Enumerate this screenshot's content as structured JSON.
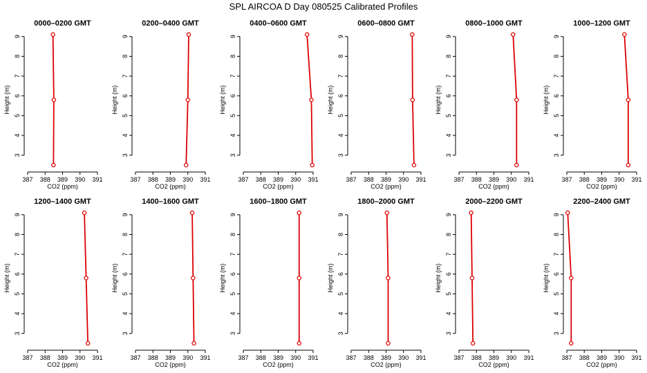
{
  "title": "SPL AIRCOA D  Day 080525  Calibrated Profiles",
  "colors": {
    "profile": "#dd0000",
    "axis": "#000000"
  },
  "chart_data": [
    {
      "type": "line",
      "title": "0000–0200 GMT",
      "xlabel": "CO2 (ppm)",
      "ylabel": "Height (m)",
      "xlim": [
        387,
        391
      ],
      "ylim": [
        2.5,
        9.1
      ],
      "x_ticks": [
        "387",
        "388",
        "389",
        "390",
        "391"
      ],
      "y_ticks": [
        "3",
        "4",
        "5",
        "6",
        "7",
        "8",
        "9"
      ],
      "series": [
        {
          "x": [
            388.45,
            388.5,
            388.48
          ],
          "y": [
            9.1,
            5.8,
            2.5
          ]
        }
      ]
    },
    {
      "type": "line",
      "title": "0200–0400 GMT",
      "xlabel": "CO2 (ppm)",
      "ylabel": "Height (m)",
      "xlim": [
        387,
        391
      ],
      "ylim": [
        2.5,
        9.1
      ],
      "x_ticks": [
        "387",
        "388",
        "389",
        "390",
        "391"
      ],
      "y_ticks": [
        "3",
        "4",
        "5",
        "6",
        "7",
        "8",
        "9"
      ],
      "series": [
        {
          "x": [
            390.05,
            390.0,
            389.9
          ],
          "y": [
            9.1,
            5.8,
            2.5
          ]
        }
      ]
    },
    {
      "type": "line",
      "title": "0400–0600 GMT",
      "xlabel": "CO2 (ppm)",
      "ylabel": "Height (m)",
      "xlim": [
        387,
        391
      ],
      "ylim": [
        2.5,
        9.1
      ],
      "x_ticks": [
        "387",
        "388",
        "389",
        "390",
        "391"
      ],
      "y_ticks": [
        "3",
        "4",
        "5",
        "6",
        "7",
        "8",
        "9"
      ],
      "series": [
        {
          "x": [
            390.65,
            390.9,
            390.95
          ],
          "y": [
            9.1,
            5.8,
            2.5
          ]
        }
      ]
    },
    {
      "type": "line",
      "title": "0600–0800 GMT",
      "xlabel": "CO2 (ppm)",
      "ylabel": "Height (m)",
      "xlim": [
        387,
        391
      ],
      "ylim": [
        2.5,
        9.1
      ],
      "x_ticks": [
        "387",
        "388",
        "389",
        "390",
        "391"
      ],
      "y_ticks": [
        "3",
        "4",
        "5",
        "6",
        "7",
        "8",
        "9"
      ],
      "series": [
        {
          "x": [
            390.5,
            390.52,
            390.6
          ],
          "y": [
            9.1,
            5.8,
            2.5
          ]
        }
      ]
    },
    {
      "type": "line",
      "title": "0800–1000 GMT",
      "xlabel": "CO2 (ppm)",
      "ylabel": "Height (m)",
      "xlim": [
        387,
        391
      ],
      "ylim": [
        2.5,
        9.1
      ],
      "x_ticks": [
        "387",
        "388",
        "389",
        "390",
        "391"
      ],
      "y_ticks": [
        "3",
        "4",
        "5",
        "6",
        "7",
        "8",
        "9"
      ],
      "series": [
        {
          "x": [
            390.1,
            390.3,
            390.3
          ],
          "y": [
            9.1,
            5.8,
            2.5
          ]
        }
      ]
    },
    {
      "type": "line",
      "title": "1000–1200 GMT",
      "xlabel": "CO2 (ppm)",
      "ylabel": "Height (m)",
      "xlim": [
        387,
        391
      ],
      "ylim": [
        2.5,
        9.1
      ],
      "x_ticks": [
        "387",
        "388",
        "389",
        "390",
        "391"
      ],
      "y_ticks": [
        "3",
        "4",
        "5",
        "6",
        "7",
        "8",
        "9"
      ],
      "series": [
        {
          "x": [
            390.3,
            390.52,
            390.52
          ],
          "y": [
            9.1,
            5.8,
            2.5
          ]
        }
      ]
    },
    {
      "type": "line",
      "title": "1200–1400 GMT",
      "xlabel": "CO2 (ppm)",
      "ylabel": "Height (m)",
      "xlim": [
        387,
        391
      ],
      "ylim": [
        2.5,
        9.1
      ],
      "x_ticks": [
        "387",
        "388",
        "389",
        "390",
        "391"
      ],
      "y_ticks": [
        "3",
        "4",
        "5",
        "6",
        "7",
        "8",
        "9"
      ],
      "series": [
        {
          "x": [
            390.25,
            390.35,
            390.45
          ],
          "y": [
            9.1,
            5.8,
            2.5
          ]
        }
      ]
    },
    {
      "type": "line",
      "title": "1400–1600 GMT",
      "xlabel": "CO2 (ppm)",
      "ylabel": "Height (m)",
      "xlim": [
        387,
        391
      ],
      "ylim": [
        2.5,
        9.1
      ],
      "x_ticks": [
        "387",
        "388",
        "389",
        "390",
        "391"
      ],
      "y_ticks": [
        "3",
        "4",
        "5",
        "6",
        "7",
        "8",
        "9"
      ],
      "series": [
        {
          "x": [
            390.25,
            390.3,
            390.35
          ],
          "y": [
            9.1,
            5.8,
            2.5
          ]
        }
      ]
    },
    {
      "type": "line",
      "title": "1600–1800 GMT",
      "xlabel": "CO2 (ppm)",
      "ylabel": "Height (m)",
      "xlim": [
        387,
        391
      ],
      "ylim": [
        2.5,
        9.1
      ],
      "x_ticks": [
        "387",
        "388",
        "389",
        "390",
        "391"
      ],
      "y_ticks": [
        "3",
        "4",
        "5",
        "6",
        "7",
        "8",
        "9"
      ],
      "series": [
        {
          "x": [
            390.2,
            390.2,
            390.2
          ],
          "y": [
            9.1,
            5.8,
            2.5
          ]
        }
      ]
    },
    {
      "type": "line",
      "title": "1800–2000 GMT",
      "xlabel": "CO2 (ppm)",
      "ylabel": "Height (m)",
      "xlim": [
        387,
        391
      ],
      "ylim": [
        2.5,
        9.1
      ],
      "x_ticks": [
        "387",
        "388",
        "389",
        "390",
        "391"
      ],
      "y_ticks": [
        "3",
        "4",
        "5",
        "6",
        "7",
        "8",
        "9"
      ],
      "series": [
        {
          "x": [
            389.05,
            389.12,
            389.12
          ],
          "y": [
            9.1,
            5.8,
            2.5
          ]
        }
      ]
    },
    {
      "type": "line",
      "title": "2000–2200 GMT",
      "xlabel": "CO2 (ppm)",
      "ylabel": "Height (m)",
      "xlim": [
        387,
        391
      ],
      "ylim": [
        2.5,
        9.1
      ],
      "x_ticks": [
        "387",
        "388",
        "389",
        "390",
        "391"
      ],
      "y_ticks": [
        "3",
        "4",
        "5",
        "6",
        "7",
        "8",
        "9"
      ],
      "series": [
        {
          "x": [
            387.7,
            387.75,
            387.8
          ],
          "y": [
            9.1,
            5.8,
            2.5
          ]
        }
      ]
    },
    {
      "type": "line",
      "title": "2200–2400 GMT",
      "xlabel": "CO2 (ppm)",
      "ylabel": "Height (m)",
      "xlim": [
        387,
        391
      ],
      "ylim": [
        2.5,
        9.1
      ],
      "x_ticks": [
        "387",
        "388",
        "389",
        "390",
        "391"
      ],
      "y_ticks": [
        "3",
        "4",
        "5",
        "6",
        "7",
        "8",
        "9"
      ],
      "series": [
        {
          "x": [
            387.05,
            387.25,
            387.25
          ],
          "y": [
            9.1,
            5.8,
            2.5
          ]
        }
      ]
    }
  ]
}
